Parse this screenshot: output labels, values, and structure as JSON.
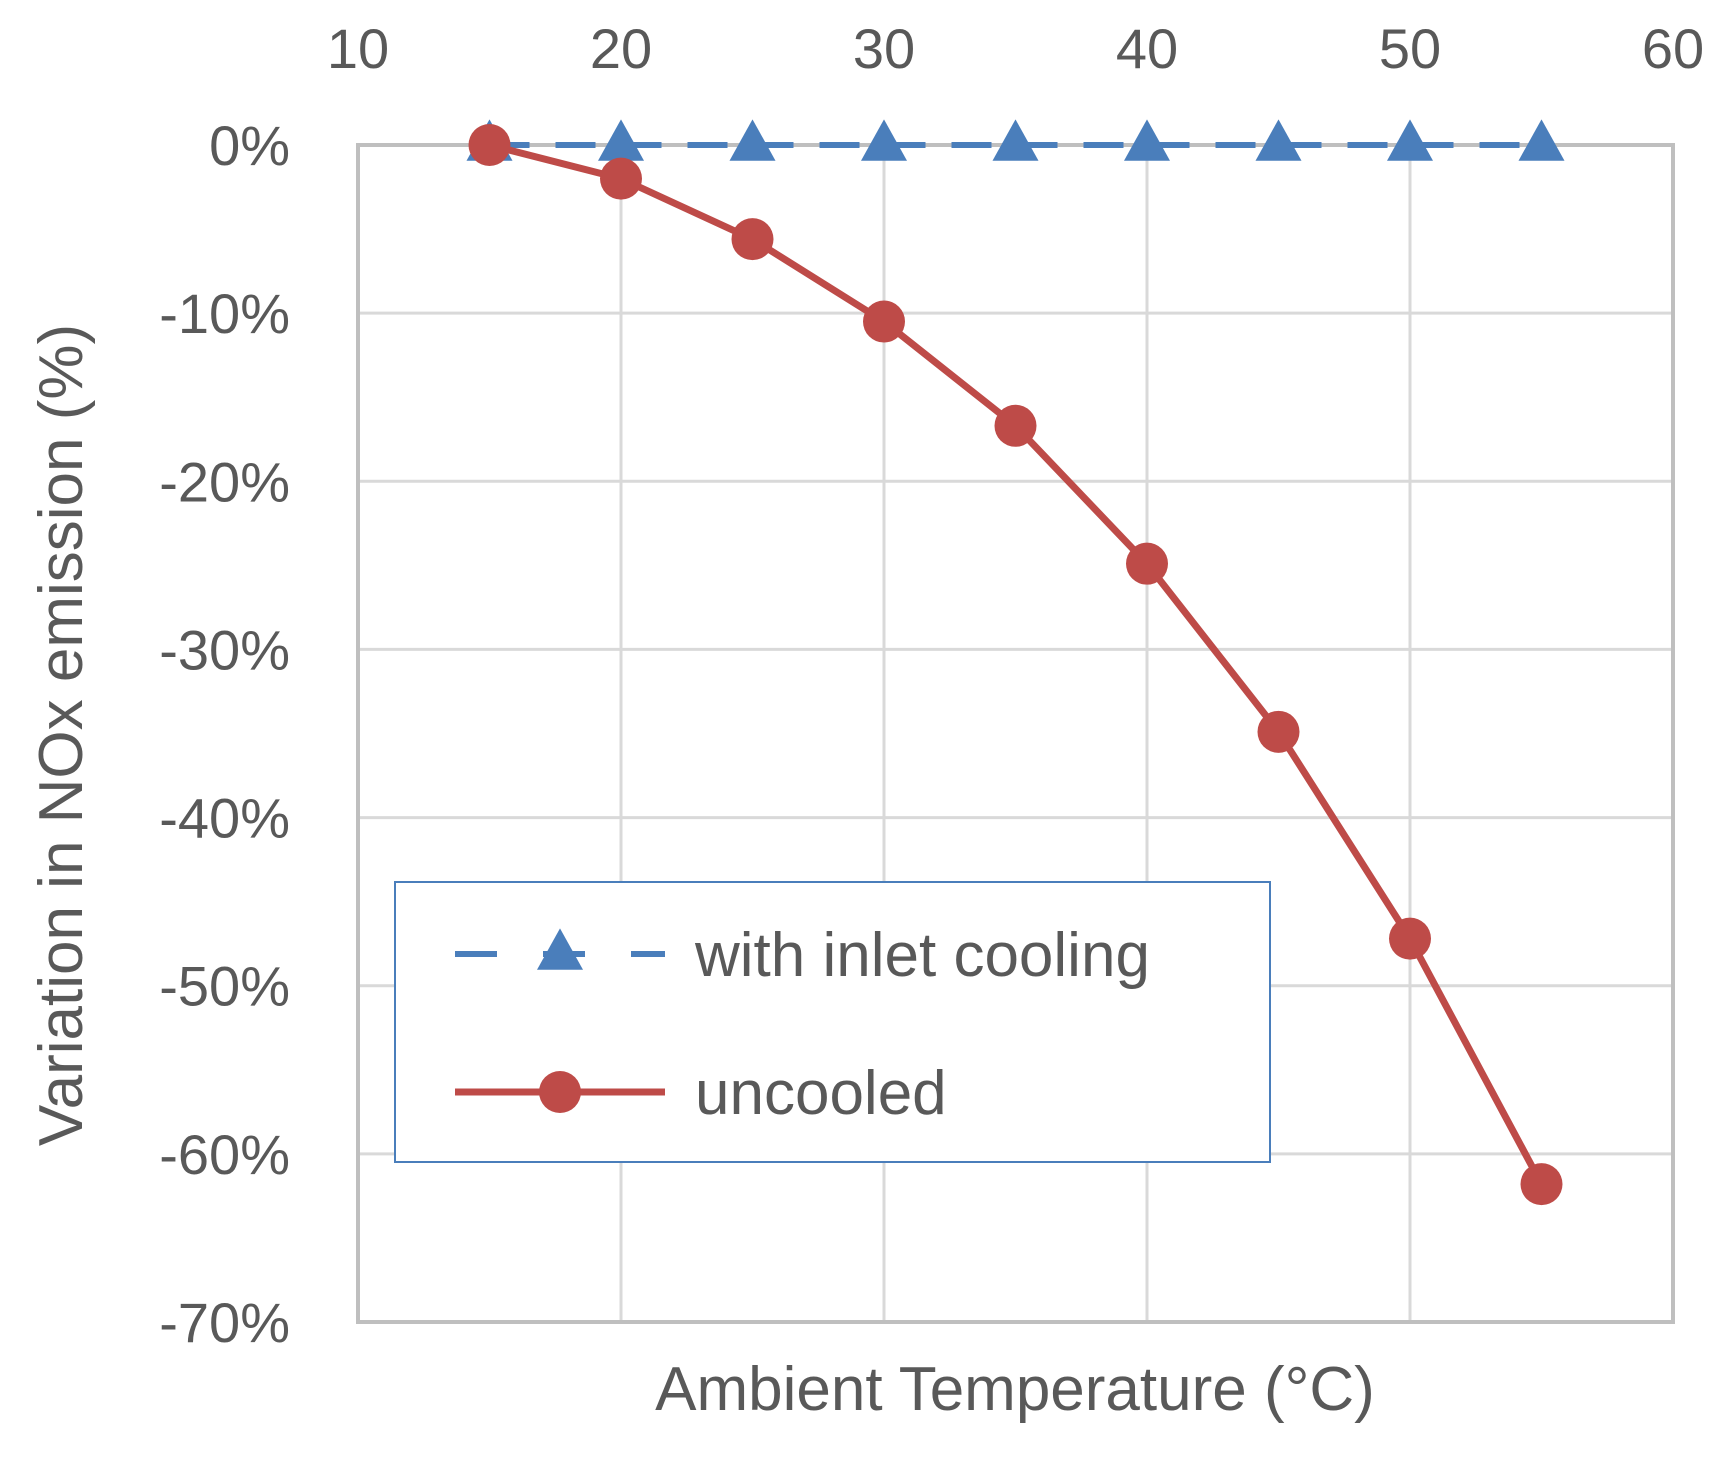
{
  "chart_data": {
    "type": "line",
    "title": "",
    "xlabel": "Ambient  Temperature (°C)",
    "ylabel": "Variation in NOx emission (%)",
    "x_axis_position": "top",
    "xlim": [
      10,
      60
    ],
    "ylim": [
      -70,
      0
    ],
    "x_ticks": [
      10,
      20,
      30,
      40,
      50,
      60
    ],
    "x_tick_labels": [
      "10",
      "20",
      "30",
      "40",
      "50",
      "60"
    ],
    "y_ticks": [
      0,
      -10,
      -20,
      -30,
      -40,
      -50,
      -60,
      -70
    ],
    "y_tick_labels": [
      "0%",
      "-10%",
      "-20%",
      "-30%",
      "-40%",
      "-50%",
      "-60%",
      "-70%"
    ],
    "grid": true,
    "legend_position": "lower-left",
    "series": [
      {
        "name": "with inlet cooling",
        "color": "#4a7ebb",
        "line_style": "dashed",
        "marker": "triangle",
        "x": [
          15,
          20,
          25,
          30,
          35,
          40,
          45,
          50,
          55
        ],
        "y": [
          0,
          0,
          0,
          0,
          0,
          0,
          0,
          0,
          0
        ]
      },
      {
        "name": "uncooled",
        "color": "#be4b48",
        "line_style": "solid",
        "marker": "circle",
        "x": [
          15,
          20,
          25,
          30,
          35,
          40,
          45,
          50,
          55
        ],
        "y": [
          0,
          -2,
          -5.6,
          -10.5,
          -16.7,
          -24.9,
          -34.9,
          -47.2,
          -61.8
        ]
      }
    ]
  }
}
